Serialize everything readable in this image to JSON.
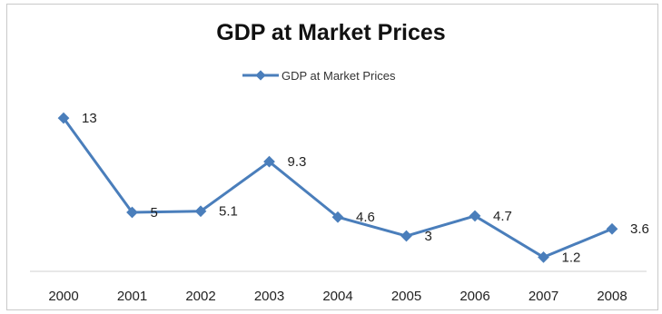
{
  "chart_data": {
    "type": "line",
    "title": "GDP at Market Prices",
    "xlabel": "",
    "ylabel": "",
    "categories": [
      "2000",
      "2001",
      "2002",
      "2003",
      "2004",
      "2005",
      "2006",
      "2007",
      "2008"
    ],
    "series": [
      {
        "name": "GDP at Market Prices",
        "values": [
          13,
          5,
          5.1,
          9.3,
          4.6,
          3,
          4.7,
          1.2,
          3.6
        ],
        "data_labels": [
          "13",
          "5",
          "5.1",
          "9.3",
          "4.6",
          "3",
          "4.7",
          "1.2",
          "3.6"
        ],
        "color": "#4a7ebb",
        "marker": "diamond"
      }
    ],
    "ylim": [
      0,
      15
    ],
    "grid": false,
    "legend_position": "top"
  }
}
